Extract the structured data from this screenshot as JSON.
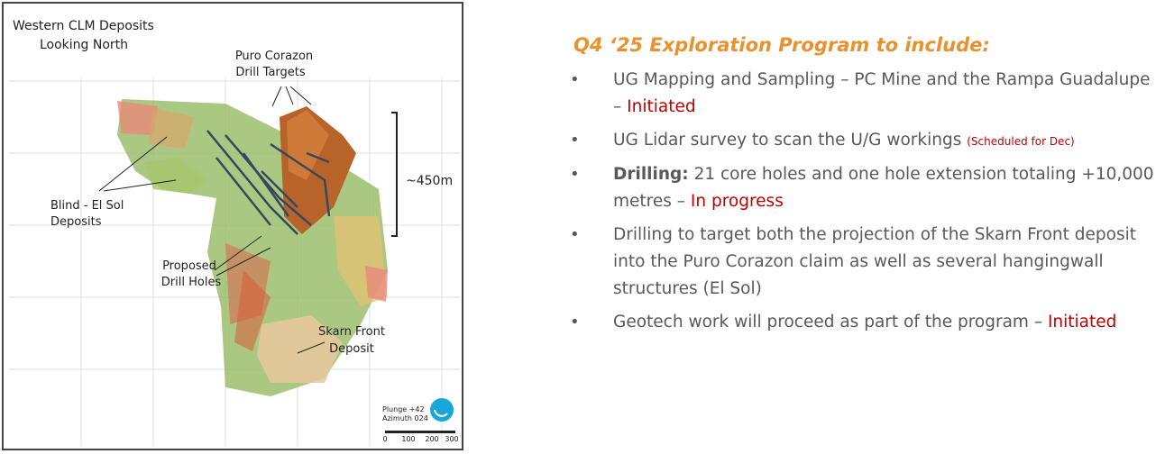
{
  "figure": {
    "title_lines": [
      "Western CLM Deposits",
      "Looking North"
    ],
    "targets_label": [
      "Puro Corazon",
      "Drill Targets"
    ],
    "height_label": "~450m",
    "blind_label": [
      "Blind - El Sol",
      "Deposits"
    ],
    "holes_label": [
      "Proposed",
      "Drill Holes"
    ],
    "skarn_label": [
      "Skarn Front",
      "Deposit"
    ],
    "view": [
      "Plunge +42",
      "Azimuth 024"
    ],
    "scale": [
      0,
      100,
      200,
      300
    ]
  },
  "program": {
    "title": "Q4 ‘25 Exploration Program to include:",
    "bullets": [
      {
        "text": "UG Mapping and Sampling – PC Mine and the Rampa Guadalupe –",
        "status": "Initiated"
      },
      {
        "text": "UG Lidar survey to scan the U/G workings",
        "note": "(Scheduled for Dec)"
      },
      {
        "lead": "Drilling:",
        "text": "21 core holes and one hole extension totaling +10,000 metres –",
        "status": "In progress"
      },
      {
        "text": "Drilling to target both the projection of the Skarn Front deposit into the Puro Corazon claim as well as several hangingwall structures (El Sol)"
      },
      {
        "text": "Geotech work will proceed as part of the program –",
        "status": "Initiated"
      }
    ]
  }
}
